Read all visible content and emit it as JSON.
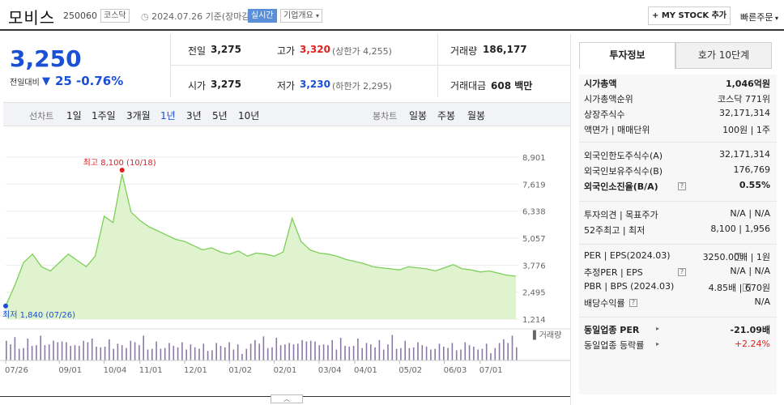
{
  "header": {
    "name": "모비스",
    "code": "250060",
    "market": "코스닥",
    "date": "2024.07.26  기준(장마감)",
    "realtime": "실시간",
    "company_info": "기업개요",
    "mystock": "+ MY STOCK 추가",
    "quick_order": "빠른주문"
  },
  "summary": {
    "price": "3,250",
    "diff_label": "전일대비",
    "diff": "25",
    "diff_pct": "-0.76%",
    "prev_label": "전일",
    "prev": "3,275",
    "open_label": "시가",
    "open": "3,275",
    "high_label": "고가",
    "high": "3,320",
    "upper_limit": "(상한가 4,255)",
    "low_label": "저가",
    "low": "3,230",
    "lower_limit": "(하한가 2,295)",
    "volume_label": "거래량",
    "volume": "186,177",
    "amount_label": "거래대금",
    "amount": "608 백만"
  },
  "periods": {
    "line_label": "선차트",
    "line_items": [
      "1일",
      "1주일",
      "3개월",
      "1년",
      "3년",
      "5년",
      "10년"
    ],
    "active": "1년",
    "candle_label": "봉차트",
    "candle_items": [
      "일봉",
      "주봉",
      "월봉"
    ]
  },
  "chart_data": {
    "type": "area",
    "x": [
      "07/26",
      "07/30",
      "08/05",
      "08/12",
      "08/19",
      "08/26",
      "09/01",
      "09/09",
      "09/16",
      "09/23",
      "09/30",
      "10/04",
      "10/10",
      "10/18",
      "10/25",
      "11/01",
      "11/08",
      "11/15",
      "11/22",
      "11/29",
      "12/01",
      "12/08",
      "12/15",
      "12/22",
      "12/29",
      "01/02",
      "01/09",
      "01/16",
      "01/23",
      "01/30",
      "02/01",
      "02/08",
      "02/15",
      "02/22",
      "02/29",
      "03/04",
      "03/11",
      "03/18",
      "03/25",
      "04/01",
      "04/08",
      "04/15",
      "04/22",
      "04/29",
      "05/02",
      "05/09",
      "05/16",
      "05/23",
      "05/30",
      "06/03",
      "06/10",
      "06/17",
      "06/24",
      "07/01",
      "07/08",
      "07/15",
      "07/22",
      "07/26"
    ],
    "y": [
      1840,
      2800,
      3900,
      4300,
      3700,
      3500,
      3900,
      4300,
      4000,
      3700,
      4200,
      6100,
      5800,
      8100,
      6300,
      5900,
      5600,
      5400,
      5200,
      5000,
      4900,
      4700,
      4500,
      4600,
      4400,
      4300,
      4450,
      4200,
      4350,
      4300,
      4200,
      4400,
      6000,
      4900,
      4500,
      4350,
      4300,
      4200,
      4050,
      3950,
      3850,
      3700,
      3650,
      3600,
      3550,
      3700,
      3650,
      3600,
      3500,
      3650,
      3800,
      3600,
      3550,
      3450,
      3500,
      3400,
      3300,
      3250
    ],
    "xticks": [
      "07/26",
      "09/01",
      "10/04",
      "11/01",
      "12/01",
      "01/02",
      "02/01",
      "03/04",
      "04/01",
      "05/02",
      "06/03",
      "07/01"
    ],
    "yticks": [
      "8,901",
      "7,619",
      "6,338",
      "5,057",
      "3,776",
      "2,495",
      "1,214"
    ],
    "ylim": [
      1214,
      8901
    ],
    "high_label": "최고 8,100 (10/18)",
    "low_label": "최저 1,840 (07/26)",
    "volume_legend": "거래량",
    "volume": [
      9,
      6,
      8,
      5,
      4,
      7,
      6,
      5,
      8,
      6,
      5,
      9,
      7,
      6,
      8,
      5,
      4,
      6,
      7,
      5,
      9,
      4,
      6,
      5,
      7,
      5,
      6,
      4,
      5,
      7,
      5,
      6,
      9,
      5,
      4,
      6,
      5,
      4,
      5,
      6,
      4,
      5,
      4,
      5,
      6,
      4,
      5,
      4,
      3,
      5,
      6,
      4,
      5,
      4,
      5,
      3,
      4,
      5
    ],
    "colors": {
      "line": "#7ecf5a",
      "fill": "#dff3cf",
      "high": "#e02020",
      "low": "#1a4fd6"
    }
  },
  "right": {
    "tab_active": "투자정보",
    "tab_other": "호가 10단계",
    "rows1": [
      {
        "k": "시가총액",
        "v": "1,046억원"
      },
      {
        "k": "시가총액순위",
        "v": "코스닥 771위"
      },
      {
        "k": "상장주식수",
        "v": "32,171,314"
      },
      {
        "k": "액면가 | 매매단위",
        "v": "100원 | 1주"
      }
    ],
    "rows2": [
      {
        "k": "외국인한도주식수(A)",
        "v": "32,171,314"
      },
      {
        "k": "외국인보유주식수(B)",
        "v": "176,769"
      },
      {
        "k": "외국인소진율(B/A)",
        "v": "0.55%"
      }
    ],
    "rows3": [
      {
        "k": "투자의견 | 목표주가",
        "v": "N/A | N/A"
      },
      {
        "k": "52주최고 | 최저",
        "v": "8,100 | 1,956"
      }
    ],
    "rows4": [
      {
        "k": "PER | EPS(2024.03)",
        "v": "3250.00배 | 1원"
      },
      {
        "k": "추정PER | EPS",
        "v": "N/A | N/A"
      },
      {
        "k": "PBR | BPS (2024.03)",
        "v": "4.85배 | 670원"
      },
      {
        "k": "배당수익률",
        "v": "N/A"
      }
    ],
    "rows5": [
      {
        "k": "동일업종 PER",
        "v": "-21.09배"
      },
      {
        "k": "동일업종 등락률",
        "v": "+2.24%"
      }
    ]
  }
}
